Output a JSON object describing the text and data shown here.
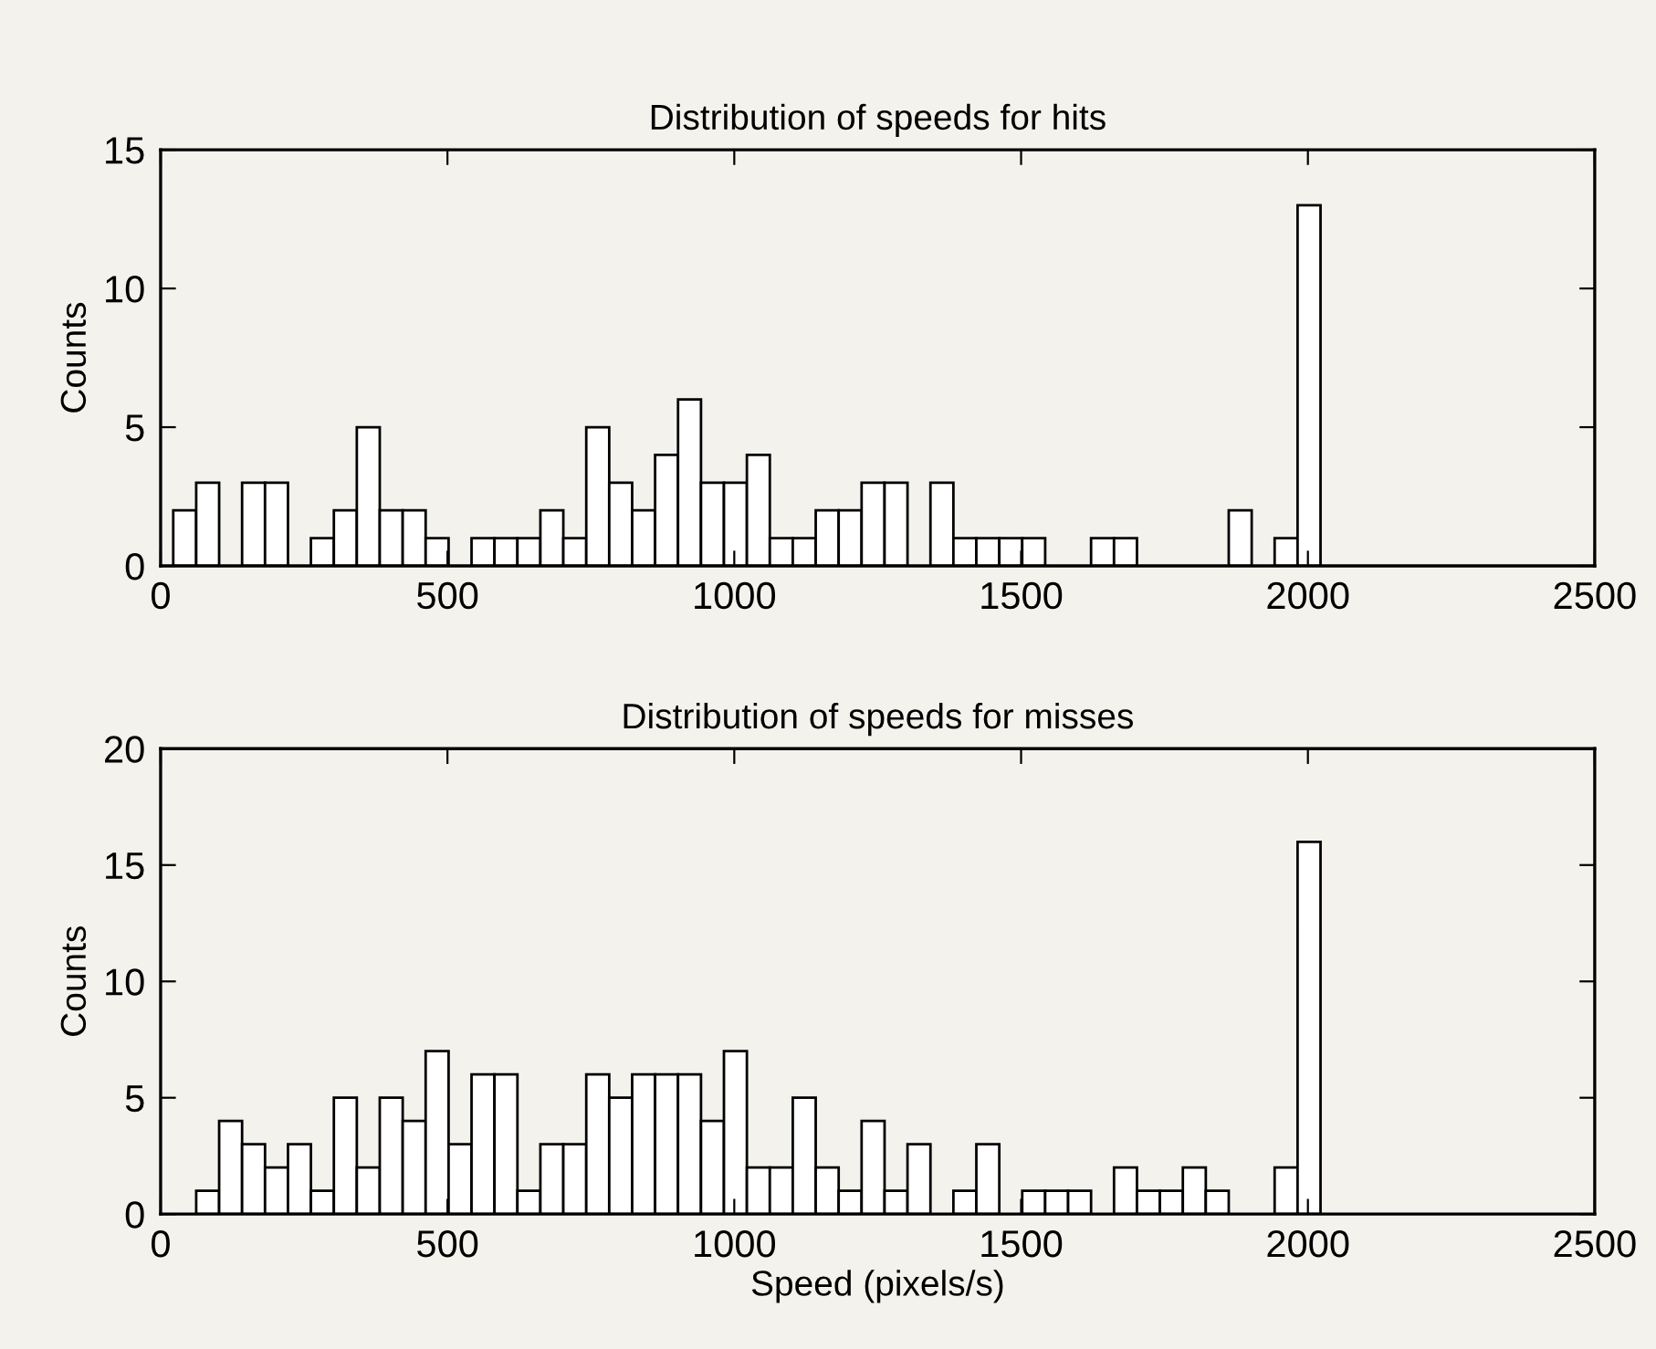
{
  "chart_data": [
    {
      "type": "histogram",
      "title": "Distribution of speeds for hits",
      "ylabel": "Counts",
      "bins": [
        22,
        62,
        102,
        142,
        182,
        222,
        262,
        302,
        342,
        382,
        422,
        462,
        502,
        542,
        582,
        622,
        662,
        702,
        742,
        782,
        822,
        862,
        902,
        942,
        982,
        1022,
        1062,
        1102,
        1142,
        1182,
        1222,
        1262,
        1302,
        1342,
        1382,
        1422,
        1462,
        1502,
        1542,
        1582,
        1622,
        1662,
        1702,
        1742,
        1782,
        1822,
        1862,
        1902,
        1942,
        1982,
        2022
      ],
      "values": [
        2,
        3,
        0,
        3,
        3,
        0,
        1,
        2,
        5,
        2,
        2,
        1,
        0,
        1,
        1,
        1,
        2,
        1,
        5,
        3,
        2,
        4,
        6,
        3,
        3,
        4,
        1,
        1,
        2,
        2,
        3,
        3,
        0,
        3,
        1,
        1,
        1,
        1,
        0,
        0,
        1,
        1,
        0,
        0,
        0,
        0,
        2,
        0,
        1,
        13
      ],
      "color": "#ffffff",
      "xlim": [
        0,
        2500
      ],
      "xticks": [
        0,
        500,
        1000,
        1500,
        2000,
        2500
      ],
      "ylim": [
        0,
        15
      ],
      "yticks": [
        0,
        5,
        10,
        15
      ],
      "grid": false
    },
    {
      "type": "histogram",
      "title": "Distribution of speeds for misses",
      "xlabel": "Speed (pixels/s)",
      "ylabel": "Counts",
      "bins": [
        22,
        62,
        102,
        142,
        182,
        222,
        262,
        302,
        342,
        382,
        422,
        462,
        502,
        542,
        582,
        622,
        662,
        702,
        742,
        782,
        822,
        862,
        902,
        942,
        982,
        1022,
        1062,
        1102,
        1142,
        1182,
        1222,
        1262,
        1302,
        1342,
        1382,
        1422,
        1462,
        1502,
        1542,
        1582,
        1622,
        1662,
        1702,
        1742,
        1782,
        1822,
        1862,
        1902,
        1942,
        1982,
        2022
      ],
      "values": [
        0,
        1,
        4,
        3,
        2,
        3,
        1,
        5,
        2,
        5,
        4,
        7,
        3,
        6,
        6,
        1,
        3,
        3,
        6,
        5,
        6,
        6,
        6,
        4,
        7,
        2,
        2,
        5,
        2,
        1,
        4,
        1,
        3,
        0,
        1,
        3,
        0,
        1,
        1,
        1,
        0,
        2,
        1,
        1,
        2,
        1,
        0,
        0,
        2,
        16
      ],
      "color": "#ffffff",
      "xlim": [
        0,
        2500
      ],
      "xticks": [
        0,
        500,
        1000,
        1500,
        2000,
        2500
      ],
      "ylim": [
        0,
        20
      ],
      "yticks": [
        0,
        5,
        10,
        15,
        20
      ],
      "grid": false
    }
  ]
}
